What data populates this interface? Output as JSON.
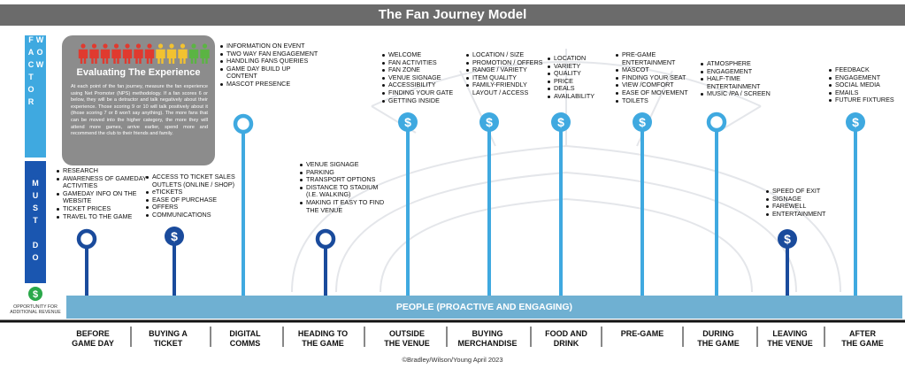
{
  "title": "The Fan Journey Model",
  "side_labels": {
    "wow": "WOW FACTOR",
    "must": "MUST DO"
  },
  "revenue_symbol": "$",
  "revenue_note": "OPPORTUNITY FOR ADDITIONAL REVENUE",
  "evaluation": {
    "title": "Evaluating The Experience",
    "body": "At each point of the fan journey, measure the fan experience using Net Promoter (NPS) methodology. If a fan scores 6 or below, they will be a detractor and talk negatively about their experience. Those scoring 9 or 10 will talk positively about it (those scoring 7 or 8 won't say anything). The more fans that can be moved into the higher category, the more they will attend more games, arrive earlier, spend more and recommend the club to their friends and family."
  },
  "banner": "PEOPLE (PROACTIVE AND  ENGAGING)",
  "stages": [
    {
      "label": [
        "BEFORE",
        "GAME DAY"
      ],
      "items": [
        "RESEARCH",
        "AWARENESS OF GAMEDAY ACTIVITIES",
        "GAMEDAY INFO ON THE WEBSITE",
        "TICKET PRICES",
        "TRAVEL TO THE GAME"
      ]
    },
    {
      "label": [
        "BUYING A",
        "TICKET"
      ],
      "items": [
        "ACCESS TO TICKET SALES OUTLETS (ONLINE / SHOP)",
        "eTICKETS",
        "EASE OF PURCHASE",
        "OFFERS",
        "COMMUNICATIONS"
      ]
    },
    {
      "label": [
        "DIGITAL",
        "COMMS"
      ],
      "items": [
        "INFORMATION ON EVENT",
        "TWO WAY FAN ENGAGEMENT",
        "HANDLING FANS QUERIES",
        "GAME DAY BUILD UP CONTENT",
        "MASCOT PRESENCE"
      ]
    },
    {
      "label": [
        "HEADING TO",
        "THE GAME"
      ],
      "items": [
        "VENUE SIGNAGE",
        "PARKING",
        "TRANSPORT OPTIONS",
        "DISTANCE TO STADIUM (I.E. WALKING)",
        "MAKING IT EASY TO FIND THE VENUE"
      ]
    },
    {
      "label": [
        "OUTSIDE",
        "THE VENUE"
      ],
      "items": [
        "WELCOME",
        "FAN ACTIVITIES",
        "FAN ZONE",
        "VENUE SIGNAGE",
        "ACCESSIBILITY",
        "FINDING YOUR GATE",
        "GETTING INSIDE"
      ]
    },
    {
      "label": [
        "BUYING",
        "MERCHANDISE"
      ],
      "items": [
        "LOCATION / SIZE",
        "PROMOTION / OFFERS",
        "RANGE / VARIETY",
        "ITEM QUALITY",
        "FAMILY-FRIENDLY LAYOUT / ACCESS"
      ]
    },
    {
      "label": [
        "FOOD AND",
        "DRINK"
      ],
      "items": [
        "LOCATION",
        "VARIETY",
        "QUALITY",
        "PRICE",
        "DEALS",
        "AVAILABILITY"
      ]
    },
    {
      "label": [
        "PRE-GAME"
      ],
      "items": [
        "PRE-GAME ENTERTAINMENT",
        "MASCOT",
        "FINDING YOUR SEAT",
        "VIEW /COMFORT",
        "EASE OF MOVEMENT",
        "TOILETS"
      ]
    },
    {
      "label": [
        "DURING",
        "THE GAME"
      ],
      "items": [
        "ATMOSPHERE",
        "ENGAGEMENT",
        "HALF-TIME ENTERTAINMENT",
        "MUSIC /PA / SCREEN"
      ]
    },
    {
      "label": [
        "LEAVING",
        "THE VENUE"
      ],
      "items": [
        "SPEED OF EXIT",
        "SIGNAGE",
        "FAREWELL",
        "ENTERTAINMENT"
      ]
    },
    {
      "label": [
        "AFTER",
        "THE GAME"
      ],
      "items": [
        "FEEDBACK",
        "ENGAGEMENT",
        "SOCIAL MEDIA",
        "EMAILS",
        "FUTURE FIXTURES"
      ]
    }
  ],
  "credit": "©Bradley/Wilson/Young April 2023"
}
